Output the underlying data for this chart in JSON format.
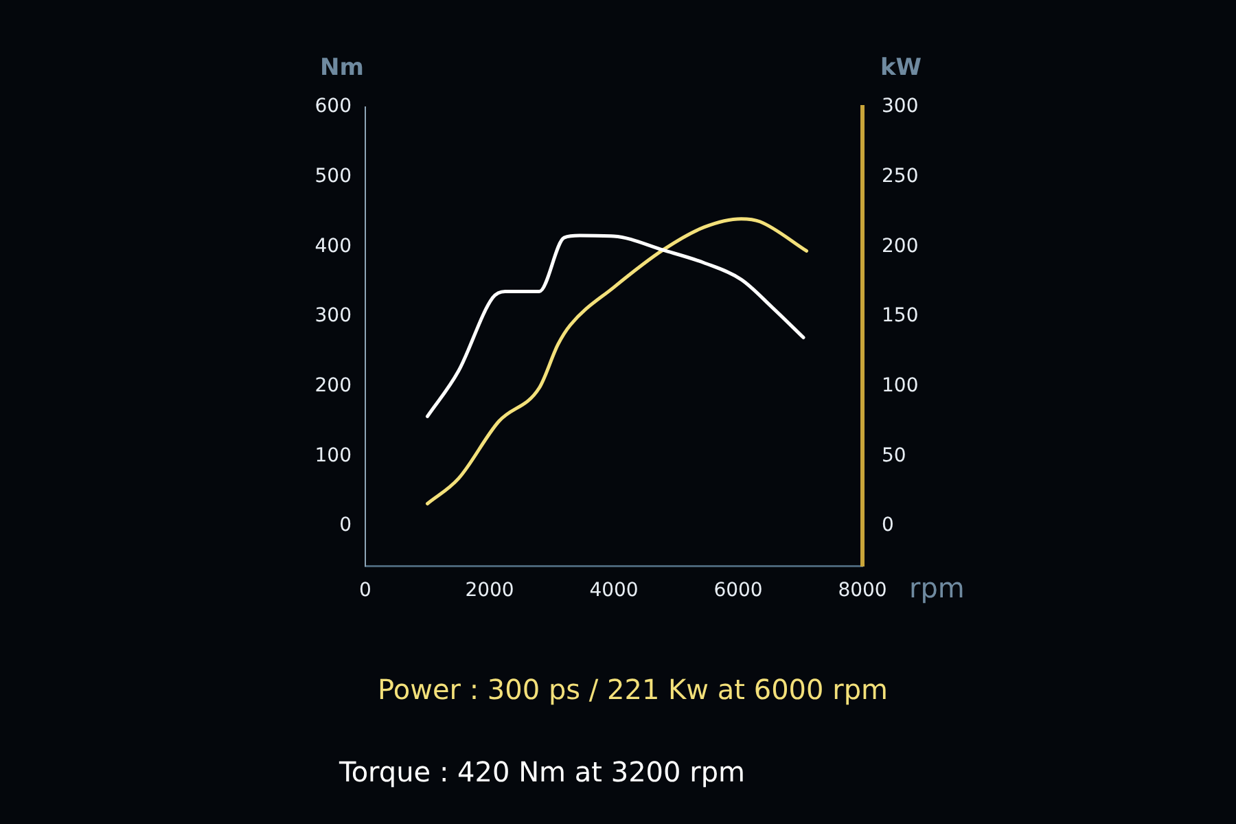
{
  "chart_data": {
    "type": "line",
    "xlabel": "rpm",
    "ylabel": "Nm",
    "y2label": "kW",
    "xlim": [
      0,
      8000
    ],
    "xticks": [
      0,
      2000,
      4000,
      6000,
      8000
    ],
    "ylim": [
      -57,
      600
    ],
    "yticks": [
      0,
      100,
      200,
      300,
      400,
      500,
      600
    ],
    "y2lim": [
      -28.5,
      300
    ],
    "y2ticks": [
      0,
      50,
      100,
      150,
      200,
      250,
      300
    ],
    "marker": "none",
    "series": [
      {
        "type": "line",
        "axis": "y",
        "color": "#ffffff",
        "x": [
          1000,
          1500,
          2050,
          2250,
          2800,
          3200,
          3450,
          4000,
          4800,
          5450,
          6050,
          6550,
          7050
        ],
        "values": [
          157,
          222,
          327,
          336,
          336,
          413,
          416,
          415,
          395,
          377,
          353,
          313,
          270
        ]
      },
      {
        "type": "line",
        "axis": "y2",
        "color": "#f3e07a",
        "x": [
          1000,
          1500,
          2150,
          2800,
          3100,
          3300,
          4000,
          4800,
          5450,
          6050,
          6350,
          7100
        ],
        "values": [
          16,
          34,
          75,
          99,
          130,
          144,
          171,
          198,
          214,
          220,
          218,
          197
        ]
      }
    ],
    "annotations": [
      "Power : 300 ps / 221 Kw at 6000 rpm",
      "Torque : 420 Nm at 3200 rpm"
    ]
  }
}
